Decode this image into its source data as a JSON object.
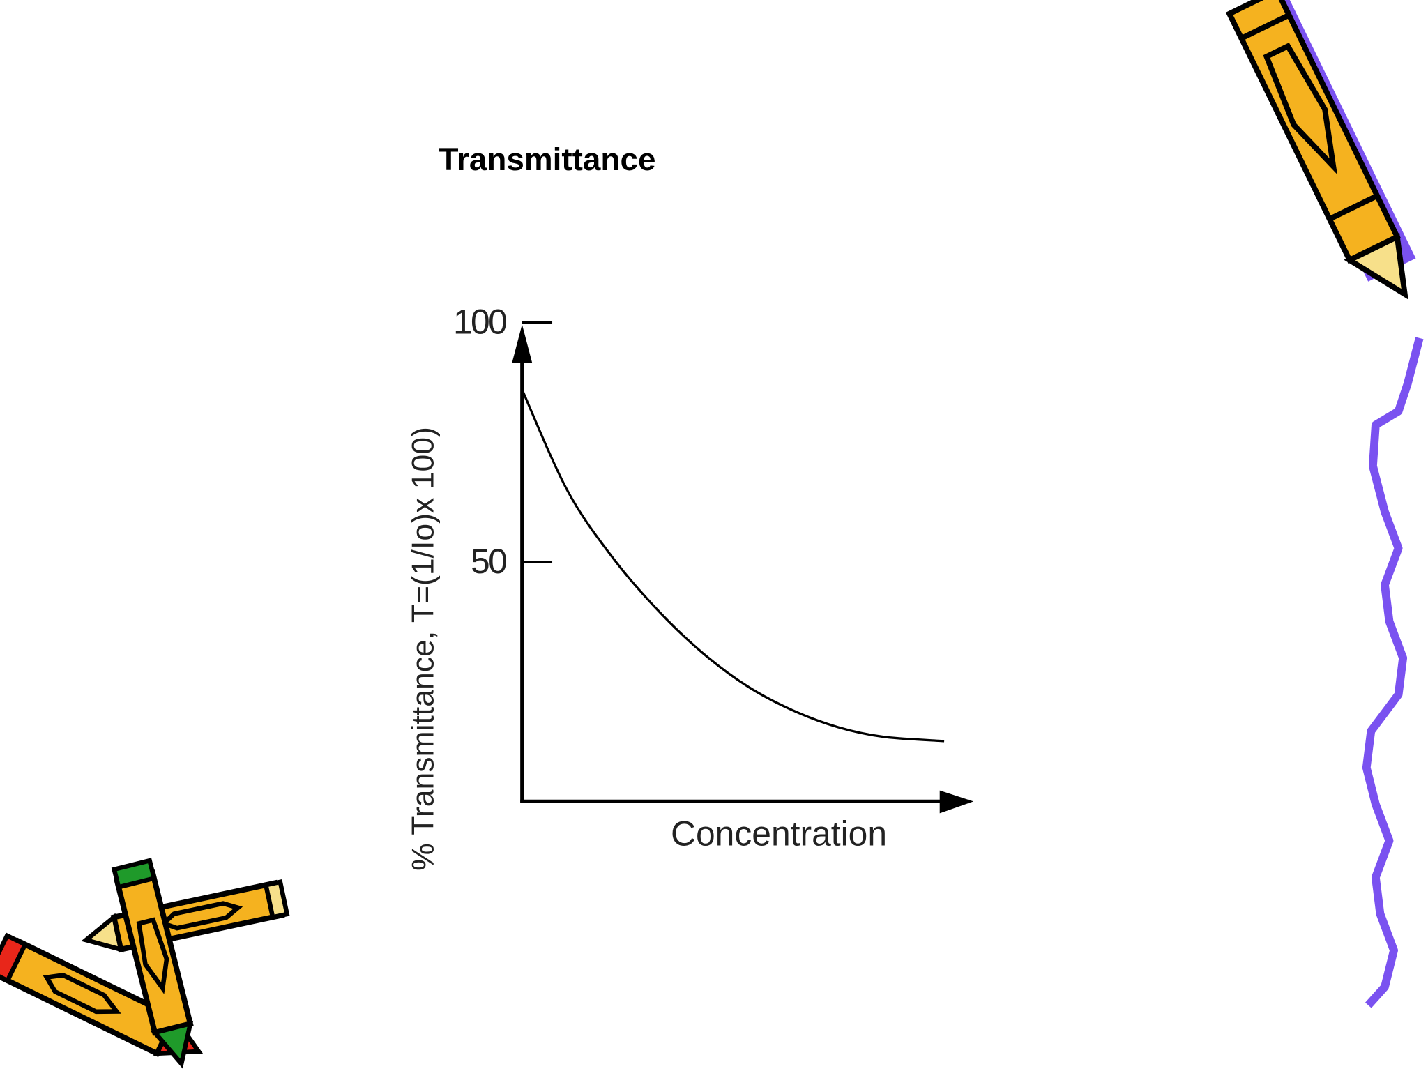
{
  "chart_data": {
    "type": "line",
    "title": "Transmittance",
    "y_label": "% Transmittance, T=(1/Io)x 100)",
    "x_label": "Concentration",
    "x": [
      0,
      1,
      2,
      3,
      4,
      5,
      6,
      7,
      8,
      9.35
    ],
    "series": [
      {
        "color": "#000000",
        "values": [
          86,
          65,
          51,
          40,
          31,
          24,
          19,
          15.5,
          13.5,
          12.6
        ]
      }
    ],
    "xlim": [
      0,
      10
    ],
    "ylim": [
      0,
      100
    ],
    "yticks": [
      50,
      100
    ]
  }
}
